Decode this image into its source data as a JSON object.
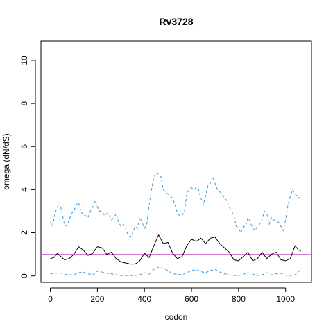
{
  "chart_data": {
    "type": "line",
    "title": "Rv3728",
    "xlabel": "codon",
    "ylabel": "omega (dN/dS)",
    "xlim": [
      -40,
      1110
    ],
    "ylim": [
      -0.3,
      10.9
    ],
    "x_ticks": [
      0,
      200,
      400,
      600,
      800,
      1000
    ],
    "y_ticks": [
      0,
      2,
      4,
      6,
      8,
      10
    ],
    "grid": false,
    "legend": "none",
    "reference_line": {
      "y": 1,
      "color": "#cc66cc"
    },
    "series": [
      {
        "style": "solid",
        "color": "#000000",
        "x": [
          0,
          15,
          30,
          45,
          60,
          80,
          100,
          120,
          140,
          160,
          180,
          200,
          220,
          240,
          260,
          280,
          300,
          320,
          340,
          360,
          380,
          400,
          420,
          440,
          460,
          480,
          500,
          520,
          540,
          560,
          580,
          600,
          620,
          640,
          660,
          680,
          700,
          720,
          740,
          760,
          780,
          800,
          820,
          840,
          860,
          880,
          900,
          920,
          940,
          960,
          980,
          1000,
          1020,
          1040,
          1055,
          1065
        ],
        "y": [
          0.8,
          0.85,
          1.05,
          0.9,
          0.75,
          0.8,
          1.0,
          1.35,
          1.2,
          0.95,
          1.05,
          1.35,
          1.3,
          1.0,
          1.1,
          0.8,
          0.65,
          0.6,
          0.55,
          0.55,
          0.7,
          1.05,
          0.85,
          1.4,
          1.9,
          1.5,
          1.55,
          1.05,
          0.8,
          0.9,
          1.4,
          1.7,
          1.6,
          1.75,
          1.5,
          1.75,
          1.8,
          1.5,
          1.3,
          1.1,
          0.75,
          0.7,
          0.9,
          1.1,
          0.7,
          0.8,
          1.1,
          0.8,
          1.0,
          1.1,
          0.75,
          0.7,
          0.8,
          1.4,
          1.2,
          1.15
        ]
      },
      {
        "style": "dashed",
        "color": "#3399dd",
        "x": [
          0,
          10,
          20,
          30,
          40,
          50,
          60,
          70,
          80,
          90,
          100,
          110,
          120,
          130,
          140,
          150,
          160,
          170,
          180,
          190,
          200,
          210,
          220,
          230,
          240,
          250,
          260,
          270,
          280,
          290,
          300,
          310,
          320,
          330,
          340,
          350,
          360,
          370,
          380,
          390,
          400,
          410,
          420,
          430,
          440,
          450,
          460,
          470,
          480,
          490,
          500,
          510,
          520,
          530,
          540,
          550,
          560,
          570,
          580,
          590,
          600,
          610,
          620,
          630,
          640,
          650,
          660,
          670,
          680,
          690,
          700,
          710,
          720,
          730,
          740,
          750,
          760,
          770,
          780,
          790,
          800,
          810,
          820,
          830,
          840,
          850,
          860,
          870,
          880,
          890,
          900,
          910,
          920,
          930,
          940,
          950,
          960,
          970,
          980,
          990,
          1000,
          1010,
          1020,
          1030,
          1040,
          1050,
          1060,
          1065
        ],
        "y": [
          2.5,
          2.3,
          2.9,
          3.2,
          3.4,
          2.9,
          2.4,
          2.3,
          2.6,
          2.9,
          3.0,
          3.3,
          3.4,
          3.0,
          2.8,
          2.8,
          2.7,
          3.0,
          3.2,
          3.5,
          3.2,
          3.0,
          3.0,
          2.8,
          2.9,
          2.8,
          2.6,
          2.7,
          2.9,
          2.5,
          2.3,
          2.4,
          2.2,
          1.9,
          1.8,
          2.0,
          2.3,
          2.2,
          2.7,
          2.5,
          2.2,
          2.4,
          3.3,
          4.0,
          4.6,
          4.8,
          4.7,
          4.6,
          4.0,
          3.9,
          3.8,
          3.7,
          3.6,
          3.3,
          2.9,
          2.8,
          2.8,
          3.0,
          3.8,
          4.0,
          4.1,
          4.0,
          4.1,
          4.0,
          3.6,
          3.3,
          3.7,
          4.2,
          4.3,
          4.6,
          4.3,
          4.0,
          3.9,
          3.8,
          3.6,
          3.5,
          3.2,
          3.0,
          2.8,
          2.3,
          2.2,
          2.0,
          2.3,
          2.3,
          2.7,
          2.5,
          2.2,
          2.1,
          2.3,
          2.4,
          2.6,
          3.0,
          2.9,
          2.4,
          2.7,
          2.6,
          2.5,
          2.5,
          2.3,
          2.1,
          2.6,
          3.3,
          3.7,
          4.0,
          3.8,
          3.7,
          3.6,
          3.7
        ]
      },
      {
        "style": "dashed",
        "color": "#3399dd",
        "x": [
          0,
          20,
          40,
          60,
          80,
          100,
          120,
          140,
          160,
          180,
          200,
          220,
          240,
          260,
          280,
          300,
          320,
          340,
          360,
          380,
          400,
          420,
          440,
          460,
          480,
          500,
          520,
          540,
          560,
          580,
          600,
          620,
          640,
          660,
          680,
          700,
          720,
          740,
          760,
          780,
          800,
          820,
          840,
          860,
          880,
          900,
          920,
          940,
          960,
          980,
          1000,
          1020,
          1040,
          1060,
          1065
        ],
        "y": [
          0.1,
          0.12,
          0.15,
          0.08,
          0.05,
          0.05,
          0.15,
          0.18,
          0.1,
          0.05,
          0.22,
          0.18,
          0.12,
          0.1,
          0.05,
          0.02,
          0.02,
          0.02,
          0.02,
          0.05,
          0.15,
          0.08,
          0.3,
          0.4,
          0.35,
          0.25,
          0.1,
          0.08,
          0.05,
          0.15,
          0.25,
          0.3,
          0.2,
          0.15,
          0.25,
          0.3,
          0.18,
          0.1,
          0.05,
          0.02,
          0.02,
          0.08,
          0.15,
          0.08,
          0.02,
          0.05,
          0.15,
          0.05,
          0.1,
          0.12,
          0.03,
          0.02,
          0.05,
          0.25,
          0.2
        ]
      }
    ]
  }
}
